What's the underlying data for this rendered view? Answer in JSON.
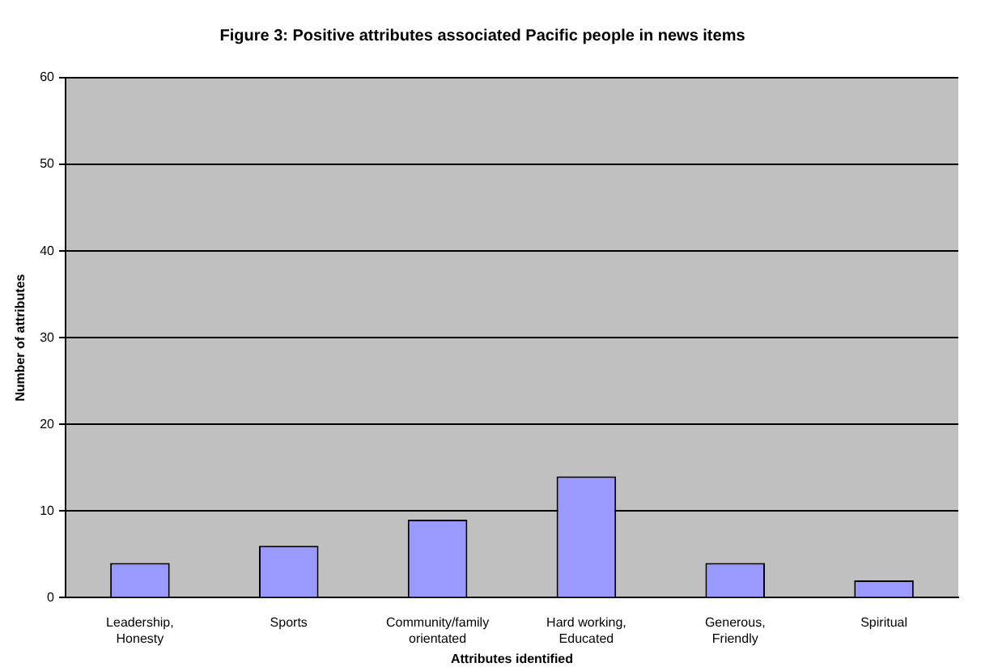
{
  "chart_data": {
    "type": "bar",
    "title": "Figure 3: Positive attributes associated Pacific people in news items",
    "xlabel": "Attributes identified",
    "ylabel": "Number of attributes",
    "categories": [
      "Leadership, Honesty",
      "Sports",
      "Community/family orientated",
      "Hard working, Educated",
      "Generous, Friendly",
      "Spiritual"
    ],
    "values": [
      4,
      6,
      9,
      14,
      4,
      2
    ],
    "color": "#9999ff",
    "ylim": [
      0,
      60
    ],
    "yticks": [
      0,
      10,
      20,
      30,
      40,
      50,
      60
    ],
    "grid": "y",
    "legend": false
  }
}
